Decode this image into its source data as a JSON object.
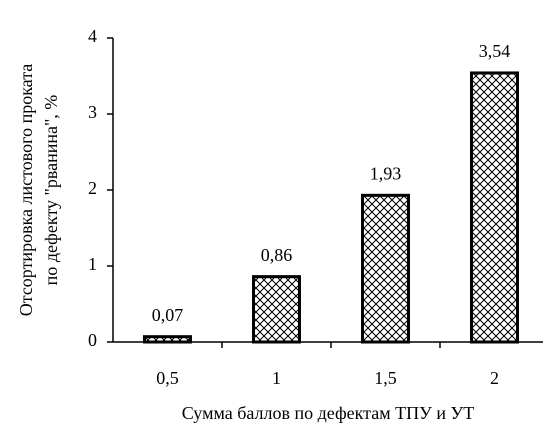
{
  "chart_data": {
    "type": "bar",
    "ylabel": [
      "Отсортировка листового проката",
      "по дефекту \"рванина\", %"
    ],
    "xlabel": "Сумма баллов по дефектам ТПУ и УТ",
    "categories": [
      "0,5",
      "1",
      "1,5",
      "2"
    ],
    "values": [
      0.07,
      0.86,
      1.93,
      3.54
    ],
    "value_labels": [
      "0,07",
      "0,86",
      "1,93",
      "3,54"
    ],
    "color": "#000000",
    "ylim": [
      0,
      4
    ],
    "yticks": [
      0,
      1,
      2,
      3,
      4
    ],
    "grid": false
  }
}
